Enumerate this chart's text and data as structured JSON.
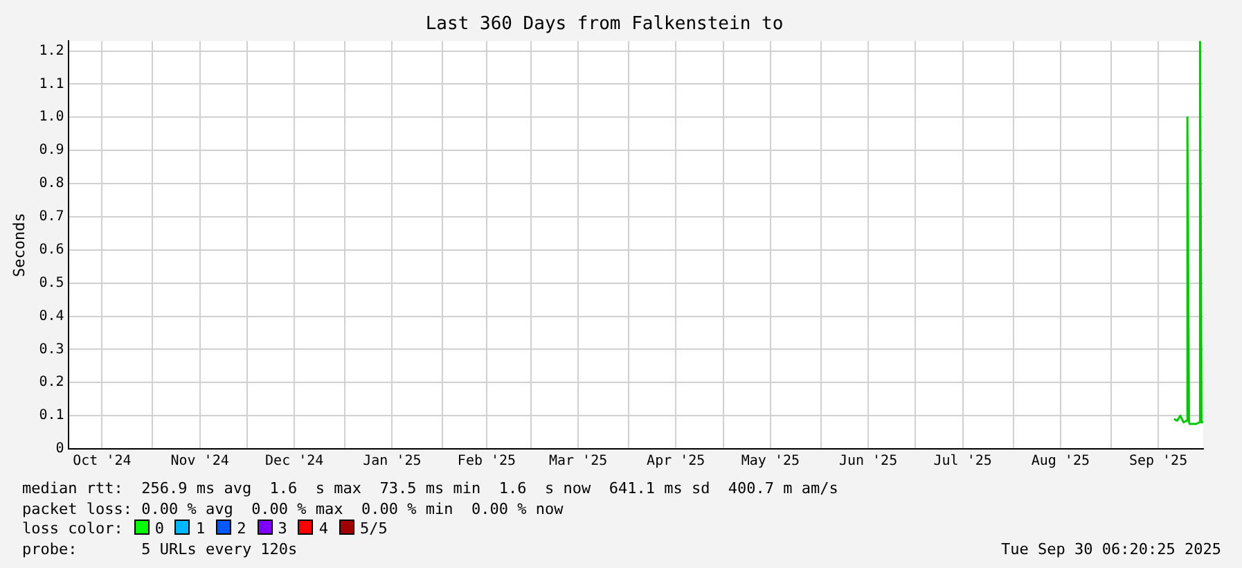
{
  "chart_data": {
    "type": "line",
    "title": "Last 360 Days from Falkenstein to",
    "ylabel": "Seconds",
    "xlim": [
      "2024-10-05T06:20",
      "2025-09-30T06:20"
    ],
    "xticks": [
      {
        "value": "2024-10-16",
        "label": "Oct '24"
      },
      {
        "value": "2024-11-01",
        "label": null
      },
      {
        "value": "2024-11-16",
        "label": "Nov '24"
      },
      {
        "value": "2024-12-01",
        "label": null
      },
      {
        "value": "2024-12-16",
        "label": "Dec '24"
      },
      {
        "value": "2025-01-01",
        "label": null
      },
      {
        "value": "2025-01-16",
        "label": "Jan '25"
      },
      {
        "value": "2025-02-01",
        "label": null
      },
      {
        "value": "2025-02-15",
        "label": "Feb '25"
      },
      {
        "value": "2025-03-01",
        "label": null
      },
      {
        "value": "2025-03-16",
        "label": "Mar '25"
      },
      {
        "value": "2025-04-01",
        "label": null
      },
      {
        "value": "2025-04-16",
        "label": "Apr '25"
      },
      {
        "value": "2025-05-01",
        "label": null
      },
      {
        "value": "2025-05-16",
        "label": "May '25"
      },
      {
        "value": "2025-06-01",
        "label": null
      },
      {
        "value": "2025-06-16",
        "label": "Jun '25"
      },
      {
        "value": "2025-07-01",
        "label": null
      },
      {
        "value": "2025-07-16",
        "label": "Jul '25"
      },
      {
        "value": "2025-08-01",
        "label": null
      },
      {
        "value": "2025-08-16",
        "label": "Aug '25"
      },
      {
        "value": "2025-09-01",
        "label": null
      },
      {
        "value": "2025-09-16",
        "label": "Sep '25"
      }
    ],
    "ylim": [
      0,
      1.23
    ],
    "yticks": [
      0,
      {
        "value": 0.1,
        "label": "0.1"
      },
      {
        "value": 0.2,
        "label": "0.2"
      },
      {
        "value": 0.3,
        "label": "0.3"
      },
      {
        "value": 0.4,
        "label": "0.4"
      },
      {
        "value": 0.5,
        "label": "0.5"
      },
      {
        "value": 0.6,
        "label": "0.6"
      },
      {
        "value": 0.7,
        "label": "0.7"
      },
      {
        "value": 0.8,
        "label": "0.8"
      },
      {
        "value": 0.9,
        "label": "0.9"
      },
      {
        "value": 1,
        "label": "1.0"
      },
      {
        "value": 1.1,
        "label": "1.1"
      },
      {
        "value": 1.2,
        "label": "1.2"
      }
    ],
    "grid": true,
    "legend": false,
    "marker": "none",
    "line_style": "solid",
    "series": [
      {
        "color": "#00c800",
        "x": [
          "2025-09-21",
          "2025-09-22",
          "2025-09-23",
          "2025-09-24",
          "2025-09-25T00:00",
          "2025-09-25T06:00",
          "2025-09-25T18:00",
          "2025-09-26",
          "2025-09-27",
          "2025-09-28",
          "2025-09-29T00:00",
          "2025-09-29T06:00",
          "2025-09-29T18:00",
          "2025-09-30T06:00"
        ],
        "values": [
          0.09,
          0.085,
          0.1,
          0.08,
          0.085,
          1.0,
          0.08,
          0.075,
          0.075,
          0.075,
          0.08,
          1.23,
          0.08,
          0.08
        ]
      }
    ],
    "annotations": [
      "median rtt:  256.9 ms avg  1.6  s max  73.5 ms min  1.6  s now  641.1 ms sd  400.7 m am/s",
      "packet loss: 0.00 % avg  0.00 % max  0.00 % min  0.00 % now",
      "loss color:",
      "0",
      "1",
      "2",
      "3",
      "4",
      "5/5",
      "probe:       5 URLs every 120s",
      "Tue Sep 30 06:20:25 2025"
    ]
  }
}
